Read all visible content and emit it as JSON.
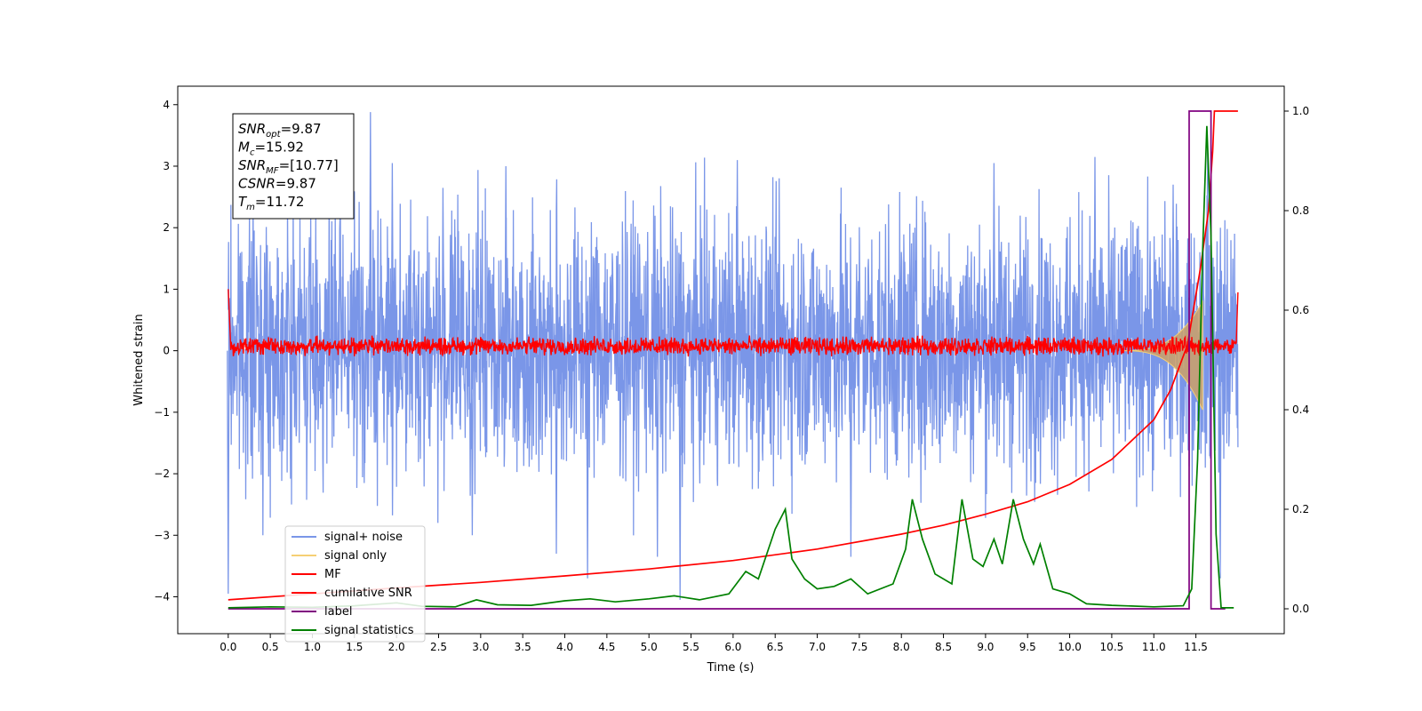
{
  "chart_data": {
    "type": "line",
    "xlabel": "Time (s)",
    "ylabel": "Whitened strain",
    "xlim": [
      -0.6,
      12.55
    ],
    "ylim": [
      -4.6,
      4.3
    ],
    "y2lim": [
      -0.05,
      1.05
    ],
    "x_ticks": [
      "0.0",
      "0.5",
      "1.0",
      "1.5",
      "2.0",
      "2.5",
      "3.0",
      "3.5",
      "4.0",
      "4.5",
      "5.0",
      "5.5",
      "6.0",
      "6.5",
      "7.0",
      "7.5",
      "8.0",
      "8.5",
      "9.0",
      "9.5",
      "10.0",
      "10.5",
      "11.0",
      "11.5"
    ],
    "y_ticks": [
      "4",
      "3",
      "2",
      "1",
      "0",
      "−1",
      "−2",
      "−3",
      "−4"
    ],
    "y2_ticks": [
      "1.0",
      "0.8",
      "0.6",
      "0.4",
      "0.2",
      "0.0"
    ],
    "grid": false,
    "legend_position": "lower-left",
    "annotation": {
      "lines": [
        {
          "sym": "SNR",
          "sub": "opt",
          "val": "=9.87"
        },
        {
          "sym": "M",
          "sub": "c",
          "val": "=15.92"
        },
        {
          "sym": "SNR",
          "sub": "MF",
          "val": "=[10.77]"
        },
        {
          "sym": "CSNR",
          "sub": "",
          "val": "=9.87"
        },
        {
          "sym": "T",
          "sub": "m",
          "val": "=11.72"
        }
      ]
    },
    "series": [
      {
        "name": "signal+ noise",
        "color": "#7a96e8",
        "axis": "left",
        "description_stats": {
          "t_start": 0.0,
          "t_end": 12.0,
          "typical_low": -2.0,
          "typical_high": 2.2
        },
        "spikes": [
          [
            1.69,
            3.88
          ],
          [
            0.0,
            -3.95
          ],
          [
            4.27,
            -3.7
          ],
          [
            5.37,
            -4.05
          ],
          [
            5.1,
            -3.35
          ],
          [
            3.9,
            -3.3
          ],
          [
            2.9,
            -3.0
          ],
          [
            7.4,
            -3.35
          ],
          [
            11.79,
            -3.7
          ],
          [
            11.23,
            2.7
          ],
          [
            11.64,
            3.35
          ],
          [
            1.95,
            3.05
          ],
          [
            6.05,
            3.1
          ],
          [
            10.3,
            3.15
          ],
          [
            3.3,
            3.0
          ],
          [
            9.1,
            3.05
          ]
        ]
      },
      {
        "name": "signal only",
        "color": "#f5cf74",
        "axis": "left",
        "chirp": {
          "t_start": 10.6,
          "t_peak": 11.58,
          "peak_amplitude": 0.8
        }
      },
      {
        "name": "MF",
        "color": "#ff0000",
        "axis": "left",
        "band": [
          -0.1,
          0.15
        ],
        "start_value": 1.0,
        "end_value": 0.95
      },
      {
        "name": "cumilative SNR",
        "color": "#ff0000",
        "axis": "right",
        "points": [
          [
            0.0,
            0.018
          ],
          [
            1.0,
            0.03
          ],
          [
            2.0,
            0.042
          ],
          [
            3.0,
            0.053
          ],
          [
            4.0,
            0.066
          ],
          [
            5.0,
            0.08
          ],
          [
            6.0,
            0.097
          ],
          [
            7.0,
            0.12
          ],
          [
            8.0,
            0.15
          ],
          [
            8.5,
            0.168
          ],
          [
            9.0,
            0.19
          ],
          [
            9.5,
            0.215
          ],
          [
            10.0,
            0.25
          ],
          [
            10.5,
            0.3
          ],
          [
            11.0,
            0.38
          ],
          [
            11.2,
            0.44
          ],
          [
            11.4,
            0.53
          ],
          [
            11.55,
            0.68
          ],
          [
            11.65,
            0.8
          ],
          [
            11.7,
            0.92
          ],
          [
            11.72,
            1.0
          ],
          [
            12.0,
            1.0
          ]
        ]
      },
      {
        "name": "label",
        "color": "#800080",
        "axis": "right",
        "points": [
          [
            0.0,
            0.0
          ],
          [
            11.42,
            0.0
          ],
          [
            11.42,
            1.0
          ],
          [
            11.68,
            1.0
          ],
          [
            11.68,
            0.0
          ],
          [
            11.85,
            0.0
          ]
        ]
      },
      {
        "name": "signal statistics",
        "color": "#008000",
        "axis": "right",
        "points": [
          [
            0.0,
            0.002
          ],
          [
            0.5,
            0.004
          ],
          [
            1.0,
            0.003
          ],
          [
            1.5,
            0.006
          ],
          [
            2.0,
            0.012
          ],
          [
            2.3,
            0.005
          ],
          [
            2.7,
            0.004
          ],
          [
            2.95,
            0.018
          ],
          [
            3.2,
            0.008
          ],
          [
            3.6,
            0.007
          ],
          [
            4.0,
            0.016
          ],
          [
            4.3,
            0.02
          ],
          [
            4.6,
            0.014
          ],
          [
            5.0,
            0.02
          ],
          [
            5.3,
            0.026
          ],
          [
            5.6,
            0.018
          ],
          [
            5.95,
            0.03
          ],
          [
            6.15,
            0.075
          ],
          [
            6.3,
            0.06
          ],
          [
            6.5,
            0.16
          ],
          [
            6.62,
            0.2
          ],
          [
            6.7,
            0.1
          ],
          [
            6.85,
            0.06
          ],
          [
            7.0,
            0.04
          ],
          [
            7.2,
            0.045
          ],
          [
            7.4,
            0.06
          ],
          [
            7.6,
            0.03
          ],
          [
            7.9,
            0.05
          ],
          [
            8.05,
            0.12
          ],
          [
            8.13,
            0.22
          ],
          [
            8.25,
            0.14
          ],
          [
            8.4,
            0.07
          ],
          [
            8.6,
            0.05
          ],
          [
            8.72,
            0.22
          ],
          [
            8.85,
            0.1
          ],
          [
            8.97,
            0.085
          ],
          [
            9.1,
            0.14
          ],
          [
            9.2,
            0.09
          ],
          [
            9.33,
            0.22
          ],
          [
            9.45,
            0.14
          ],
          [
            9.57,
            0.09
          ],
          [
            9.65,
            0.13
          ],
          [
            9.8,
            0.04
          ],
          [
            10.0,
            0.03
          ],
          [
            10.2,
            0.01
          ],
          [
            10.5,
            0.007
          ],
          [
            11.0,
            0.004
          ],
          [
            11.35,
            0.006
          ],
          [
            11.45,
            0.04
          ],
          [
            11.52,
            0.3
          ],
          [
            11.58,
            0.72
          ],
          [
            11.63,
            0.97
          ],
          [
            11.68,
            0.75
          ],
          [
            11.74,
            0.15
          ],
          [
            11.8,
            0.002
          ],
          [
            11.95,
            0.002
          ]
        ]
      }
    ]
  }
}
